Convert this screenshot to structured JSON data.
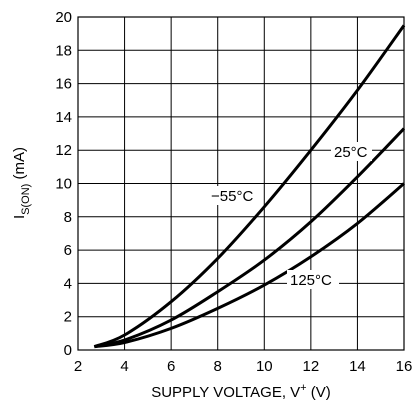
{
  "chart_data": {
    "type": "line",
    "xlabel": "SUPPLY VOLTAGE, V",
    "xlabel_sup": "+",
    "xlabel_unit": " (V)",
    "ylabel_main": "I",
    "ylabel_sub": "S(ON)",
    "ylabel_unit": " (mA)",
    "xlim": [
      2,
      16
    ],
    "ylim": [
      0,
      20
    ],
    "x_ticks": [
      "2",
      "4",
      "6",
      "8",
      "10",
      "12",
      "14",
      "16"
    ],
    "y_ticks": [
      "0",
      "2",
      "4",
      "6",
      "8",
      "10",
      "12",
      "14",
      "16",
      "18",
      "20"
    ],
    "grid": true,
    "series": [
      {
        "name": "−55°C",
        "x": [
          2.7,
          4,
          6,
          8,
          10,
          12,
          14,
          16
        ],
        "y": [
          0.2,
          0.9,
          2.9,
          5.5,
          8.6,
          12.0,
          15.6,
          19.5
        ]
      },
      {
        "name": "25°C",
        "x": [
          2.7,
          4,
          6,
          8,
          10,
          12,
          14,
          16
        ],
        "y": [
          0.2,
          0.6,
          1.8,
          3.5,
          5.4,
          7.7,
          10.4,
          13.3
        ]
      },
      {
        "name": "125°C",
        "x": [
          2.7,
          4,
          6,
          8,
          10,
          12,
          14,
          16
        ],
        "y": [
          0.2,
          0.45,
          1.3,
          2.5,
          3.9,
          5.6,
          7.6,
          10.0
        ]
      }
    ]
  }
}
